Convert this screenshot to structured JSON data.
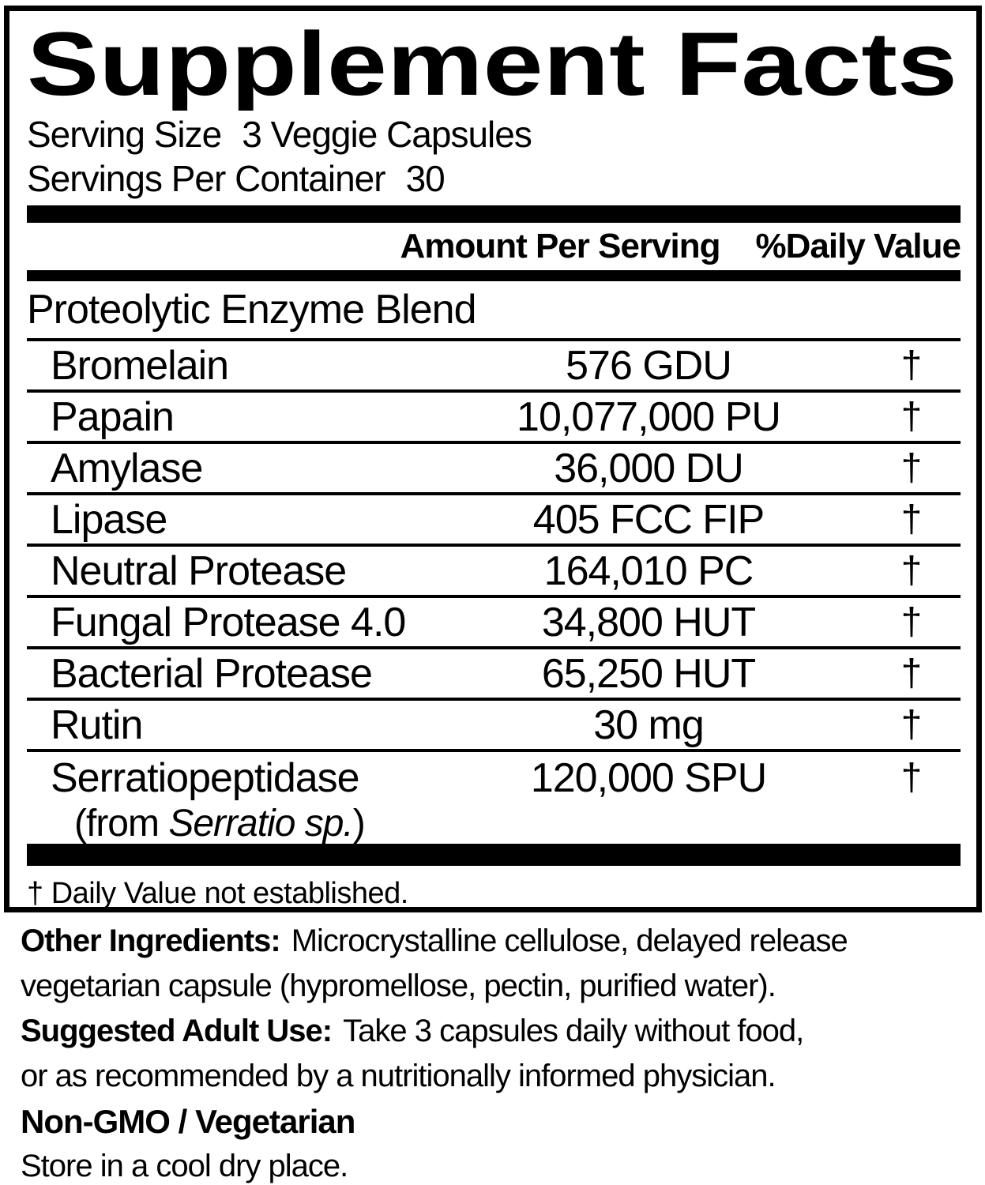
{
  "panel": {
    "title": "Supplement Facts",
    "serving_size": {
      "label": "Serving Size",
      "value": "3 Veggie Capsules"
    },
    "servings_per_container": {
      "label": "Servings Per Container",
      "value": "30"
    },
    "columns": {
      "amount": "Amount Per Serving",
      "daily_value": "%Daily Value"
    },
    "blend_header": "Proteolytic Enzyme Blend",
    "rows": [
      {
        "name": "Bromelain",
        "amount": "576 GDU",
        "dv": "†"
      },
      {
        "name": "Papain",
        "amount": "10,077,000 PU",
        "dv": "†"
      },
      {
        "name": "Amylase",
        "amount": "36,000 DU",
        "dv": "†"
      },
      {
        "name": "Lipase",
        "amount": "405 FCC FIP",
        "dv": "†"
      },
      {
        "name": "Neutral Protease",
        "amount": "164,010 PC",
        "dv": "†"
      },
      {
        "name": "Fungal Protease 4.0",
        "amount": "34,800 HUT",
        "dv": "†"
      },
      {
        "name": "Bacterial Protease",
        "amount": "65,250 HUT",
        "dv": "†"
      },
      {
        "name": "Rutin",
        "amount": "30 mg",
        "dv": "†"
      },
      {
        "name": "Serratiopeptidase",
        "source_prefix": "(from ",
        "source_italic": "Serratio sp.",
        "source_suffix": ")",
        "amount": "120,000 SPU",
        "dv": "†"
      }
    ],
    "footnote": "† Daily Value not established."
  },
  "details": {
    "other_ingredients": {
      "label": "Other Ingredients:",
      "line1": "Microcrystalline cellulose, delayed release",
      "line2": "vegetarian capsule (hypromellose, pectin, purified water)."
    },
    "suggested_use": {
      "label": "Suggested Adult Use:",
      "line1": "Take 3 capsules daily without food,",
      "line2": "or as recommended by a nutritionally informed physician."
    },
    "claims": "Non-GMO / Vegetarian",
    "storage": "Store in a cool dry place."
  },
  "colors": {
    "ink": "#000000",
    "background": "#ffffff"
  }
}
